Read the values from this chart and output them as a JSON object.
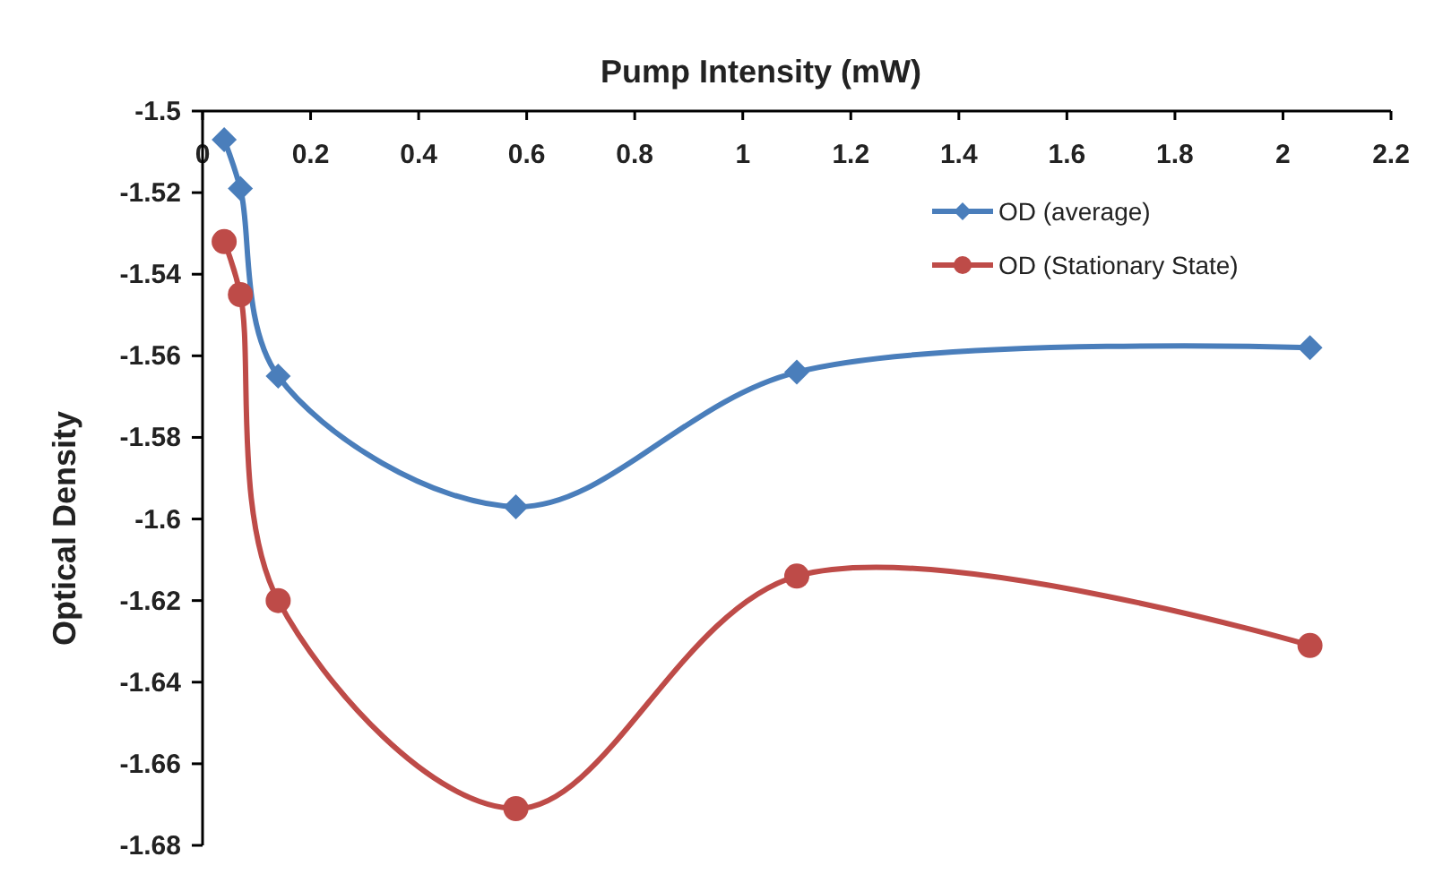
{
  "chart_data": {
    "type": "line",
    "xlabel": "Pump Intensity (mW)",
    "ylabel": "Optical Density",
    "xlim": [
      0,
      2.2
    ],
    "xticks": [
      0,
      0.2,
      0.4,
      0.6,
      0.8,
      1,
      1.2,
      1.4,
      1.6,
      1.8,
      2,
      2.2
    ],
    "ylim": [
      -1.68,
      -1.5
    ],
    "yticks": [
      -1.5,
      -1.52,
      -1.54,
      -1.56,
      -1.58,
      -1.6,
      -1.62,
      -1.64,
      -1.66,
      -1.68
    ],
    "grid": false,
    "legend": "top right",
    "x": [
      0.04,
      0.07,
      0.14,
      0.58,
      1.1,
      2.05
    ],
    "series": [
      {
        "name": "OD (average)",
        "color": "#4a7ebb",
        "marker": "diamond",
        "values": [
          -1.507,
          -1.519,
          -1.565,
          -1.597,
          -1.564,
          -1.558
        ]
      },
      {
        "name": "OD (Stationary State)",
        "color": "#be4b48",
        "marker": "circle",
        "values": [
          -1.532,
          -1.545,
          -1.62,
          -1.671,
          -1.614,
          -1.631
        ]
      }
    ]
  }
}
